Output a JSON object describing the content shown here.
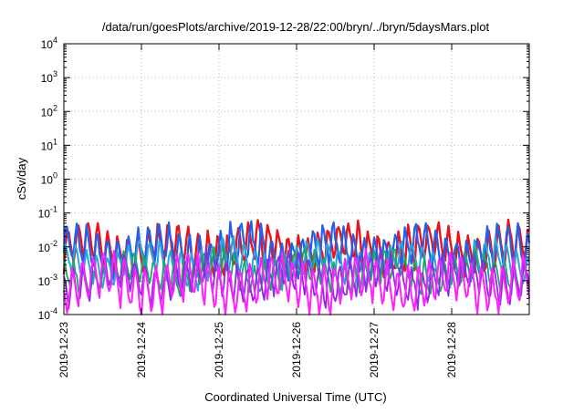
{
  "chart_data": {
    "type": "line",
    "title": "/data/run/goesPlots/archive/2019-12-28/22:00/bryn/../bryn/5daysMars.plot",
    "xlabel": "Coordinated Universal Time (UTC)",
    "ylabel": "cSv/day",
    "yscale": "log",
    "ylim": [
      0.0001,
      10000
    ],
    "ytick_values": [
      0.0001,
      0.001,
      0.01,
      0.1,
      1,
      10,
      100,
      1000,
      10000
    ],
    "ytick_labels": [
      {
        "base": "10",
        "exp": "-4"
      },
      {
        "base": "10",
        "exp": "-3"
      },
      {
        "base": "10",
        "exp": "-2"
      },
      {
        "base": "10",
        "exp": "-1"
      },
      {
        "base": "10",
        "exp": "0"
      },
      {
        "base": "10",
        "exp": "1"
      },
      {
        "base": "10",
        "exp": "2"
      },
      {
        "base": "10",
        "exp": "3"
      },
      {
        "base": "10",
        "exp": "4"
      }
    ],
    "xlim": [
      "2019-12-23",
      "2019-12-29"
    ],
    "xtick_labels": [
      "2019-12-23",
      "2019-12-24",
      "2019-12-25",
      "2019-12-26",
      "2019-12-27",
      "2019-12-28"
    ],
    "grid": true,
    "legend": "none",
    "series": [
      {
        "color": "#e8141c",
        "base": 0.009,
        "amplitude": 0.65,
        "width": 2.4
      },
      {
        "color": "#2060f0",
        "base": 0.0075,
        "amplitude": 0.65,
        "width": 2.2
      },
      {
        "color": "#2aa6d8",
        "base": 0.0032,
        "amplitude": 0.55,
        "width": 2.0
      },
      {
        "color": "#18a868",
        "base": 0.0018,
        "amplitude": 0.5,
        "width": 1.8
      },
      {
        "color": "#8a2be2",
        "base": 0.0012,
        "amplitude": 0.6,
        "width": 1.8
      },
      {
        "color": "#ff20ff",
        "base": 0.00085,
        "amplitude": 0.75,
        "width": 2.0
      }
    ]
  }
}
